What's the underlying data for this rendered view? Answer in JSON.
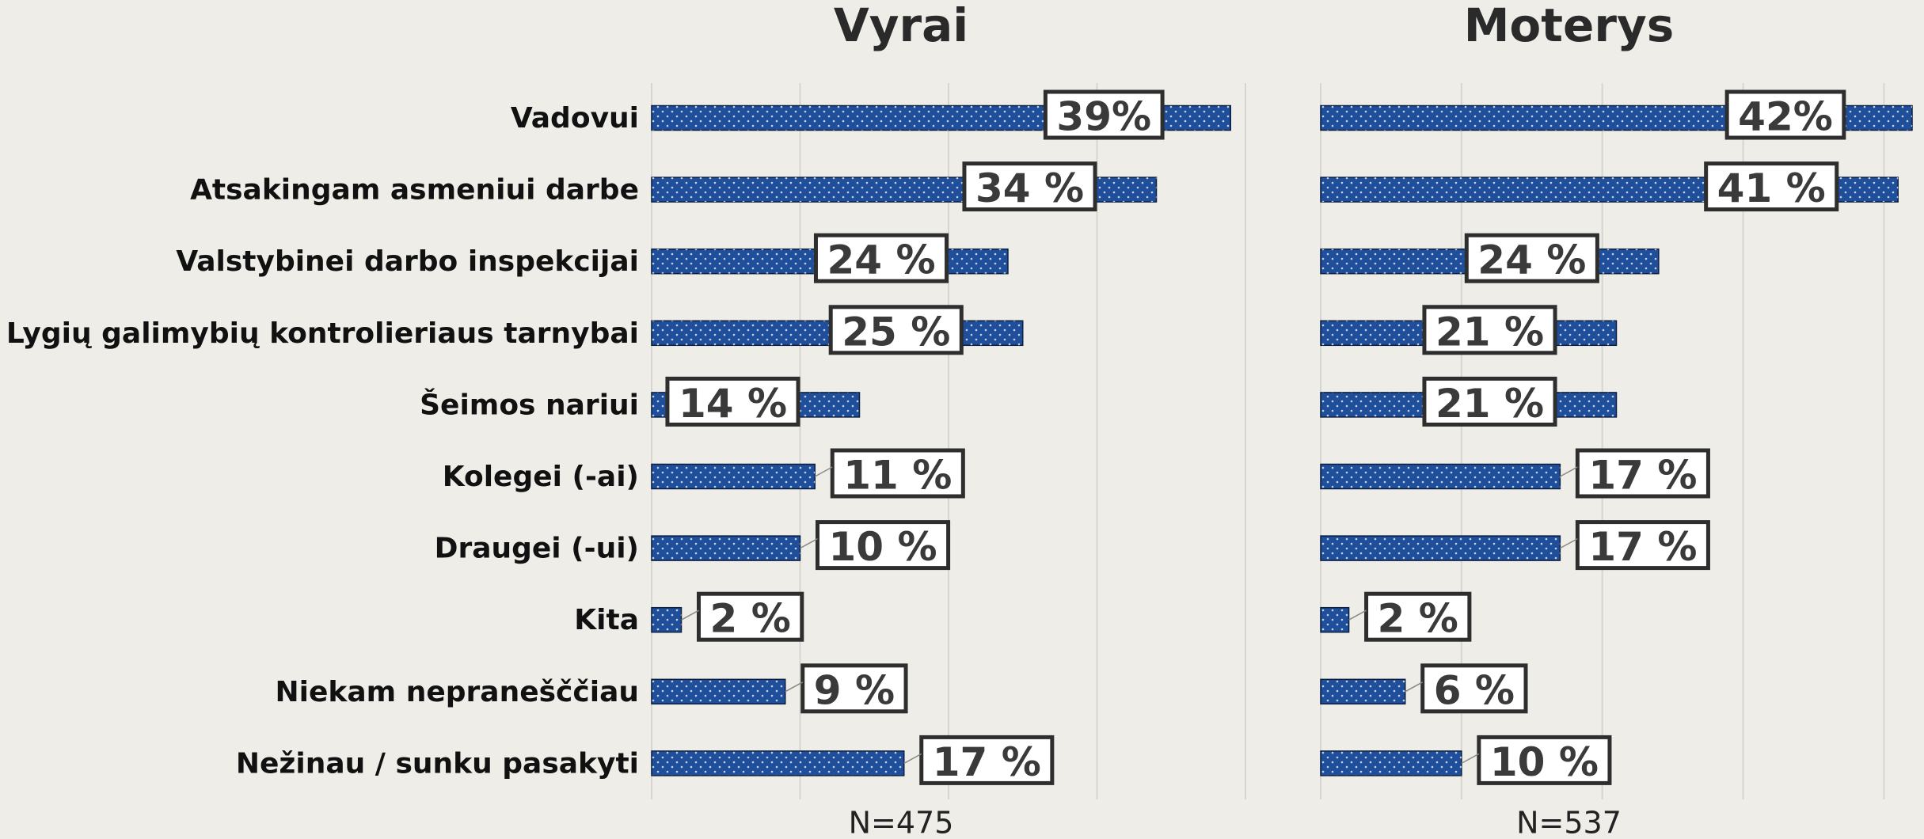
{
  "chart_data": [
    {
      "type": "bar",
      "orientation": "horizontal",
      "title": "Vyrai",
      "categories": [
        "Vadovui",
        "Atsakingam asmeniui darbe",
        "Valstybinei darbo inspekcijai",
        "Lygių galimybių kontrolieriaus tarnybai",
        "Šeimos nariui",
        "Kolegei (-ai)",
        "Draugei (-ui)",
        "Kita",
        "Niekam nepranešččiau",
        "Nežinau / sunku pasakyti"
      ],
      "values": [
        39,
        34,
        24,
        25,
        14,
        11,
        10,
        2,
        9,
        17
      ],
      "value_labels": [
        "39%",
        "34 %",
        "24 %",
        "25 %",
        "14 %",
        "11 %",
        "10 %",
        "2 %",
        "9 %",
        "17 %"
      ],
      "xlabel": "N=475",
      "xlim": [
        0,
        40
      ],
      "xticks": [
        0,
        10,
        20,
        30,
        40
      ],
      "grid": true,
      "color": "#1f4e9a"
    },
    {
      "type": "bar",
      "orientation": "horizontal",
      "title": "Moterys",
      "values": [
        42,
        41,
        24,
        21,
        21,
        17,
        17,
        2,
        6,
        10
      ],
      "value_labels": [
        "42%",
        "41 %",
        "24 %",
        "21 %",
        "21 %",
        "17 %",
        "17 %",
        "2 %",
        "6 %",
        "10 %"
      ],
      "xlabel": "N=537",
      "xlim": [
        0,
        42
      ],
      "xticks": [
        0,
        10,
        20,
        30,
        40
      ],
      "grid": true,
      "color": "#1f4e9a"
    }
  ]
}
